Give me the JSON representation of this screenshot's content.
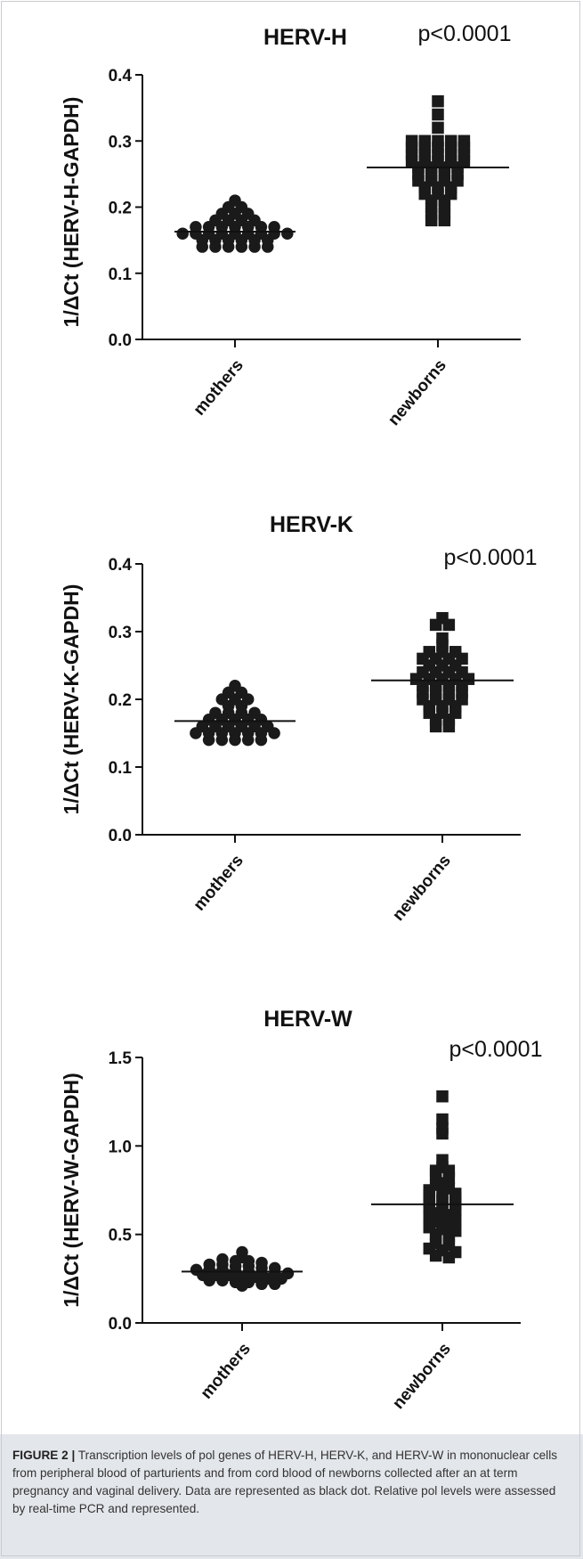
{
  "chart_data": [
    {
      "type": "scatter",
      "title": "HERV-H",
      "annotation": "p<0.0001",
      "ylabel": "1/ΔCt (HERV-H-GAPDH)",
      "ylim": [
        0,
        0.4
      ],
      "yticks": [
        "0.0",
        "0.1",
        "0.2",
        "0.3",
        "0.4"
      ],
      "categories": [
        "mothers",
        "newborns"
      ],
      "series": [
        {
          "category": "mothers",
          "marker": "circle",
          "mean": 0.163,
          "values": [
            0.21,
            0.2,
            0.2,
            0.19,
            0.19,
            0.19,
            0.18,
            0.18,
            0.18,
            0.18,
            0.17,
            0.17,
            0.17,
            0.17,
            0.17,
            0.17,
            0.17,
            0.16,
            0.16,
            0.16,
            0.16,
            0.16,
            0.16,
            0.16,
            0.16,
            0.16,
            0.15,
            0.15,
            0.15,
            0.15,
            0.15,
            0.15,
            0.14,
            0.14,
            0.14,
            0.14,
            0.14,
            0.14
          ]
        },
        {
          "category": "newborns",
          "marker": "square",
          "mean": 0.26,
          "values": [
            0.36,
            0.34,
            0.32,
            0.3,
            0.3,
            0.3,
            0.3,
            0.3,
            0.29,
            0.29,
            0.29,
            0.29,
            0.29,
            0.28,
            0.28,
            0.28,
            0.28,
            0.28,
            0.27,
            0.27,
            0.27,
            0.27,
            0.27,
            0.26,
            0.26,
            0.26,
            0.26,
            0.25,
            0.25,
            0.25,
            0.25,
            0.24,
            0.24,
            0.24,
            0.24,
            0.23,
            0.23,
            0.23,
            0.22,
            0.22,
            0.22,
            0.21,
            0.21,
            0.2,
            0.2,
            0.19,
            0.19,
            0.18,
            0.18
          ]
        }
      ]
    },
    {
      "type": "scatter",
      "title": "HERV-K",
      "annotation": "p<0.0001",
      "ylabel": "1/ΔCt (HERV-K-GAPDH)",
      "ylim": [
        0,
        0.4
      ],
      "yticks": [
        "0.0",
        "0.1",
        "0.2",
        "0.3",
        "0.4"
      ],
      "categories": [
        "mothers",
        "newborns"
      ],
      "series": [
        {
          "category": "mothers",
          "marker": "circle",
          "mean": 0.168,
          "values": [
            0.22,
            0.21,
            0.21,
            0.2,
            0.2,
            0.2,
            0.19,
            0.19,
            0.18,
            0.18,
            0.18,
            0.18,
            0.17,
            0.17,
            0.17,
            0.17,
            0.17,
            0.16,
            0.16,
            0.16,
            0.16,
            0.16,
            0.16,
            0.15,
            0.15,
            0.15,
            0.15,
            0.15,
            0.15,
            0.15,
            0.14,
            0.14,
            0.14,
            0.14,
            0.14
          ]
        },
        {
          "category": "newborns",
          "marker": "square",
          "mean": 0.228,
          "values": [
            0.32,
            0.31,
            0.31,
            0.29,
            0.28,
            0.27,
            0.27,
            0.27,
            0.26,
            0.26,
            0.26,
            0.26,
            0.25,
            0.25,
            0.25,
            0.24,
            0.24,
            0.24,
            0.24,
            0.23,
            0.23,
            0.23,
            0.23,
            0.23,
            0.22,
            0.22,
            0.22,
            0.22,
            0.21,
            0.21,
            0.21,
            0.21,
            0.2,
            0.2,
            0.2,
            0.2,
            0.19,
            0.19,
            0.19,
            0.18,
            0.18,
            0.18,
            0.17,
            0.17,
            0.16,
            0.16
          ]
        }
      ]
    },
    {
      "type": "scatter",
      "title": "HERV-W",
      "annotation": "p<0.0001",
      "ylabel": "1/ΔCt (HERV-W-GAPDH)",
      "ylim": [
        0,
        1.5
      ],
      "yticks": [
        "0.0",
        "0.5",
        "1.0",
        "1.5"
      ],
      "categories": [
        "mothers",
        "newborns"
      ],
      "series": [
        {
          "category": "mothers",
          "marker": "circle",
          "mean": 0.29,
          "values": [
            0.4,
            0.37,
            0.36,
            0.35,
            0.35,
            0.34,
            0.33,
            0.33,
            0.32,
            0.32,
            0.31,
            0.31,
            0.3,
            0.3,
            0.3,
            0.29,
            0.29,
            0.28,
            0.28,
            0.28,
            0.27,
            0.27,
            0.27,
            0.26,
            0.26,
            0.25,
            0.25,
            0.24,
            0.24,
            0.23,
            0.23,
            0.22,
            0.22,
            0.21
          ]
        },
        {
          "category": "newborns",
          "marker": "square",
          "mean": 0.67,
          "values": [
            1.28,
            1.15,
            1.1,
            1.07,
            0.92,
            0.88,
            0.86,
            0.86,
            0.84,
            0.82,
            0.79,
            0.78,
            0.76,
            0.75,
            0.74,
            0.73,
            0.72,
            0.7,
            0.7,
            0.69,
            0.68,
            0.67,
            0.66,
            0.65,
            0.64,
            0.62,
            0.61,
            0.6,
            0.59,
            0.58,
            0.57,
            0.55,
            0.54,
            0.53,
            0.52,
            0.5,
            0.49,
            0.47,
            0.46,
            0.45,
            0.44,
            0.42,
            0.41,
            0.4,
            0.38,
            0.37
          ]
        }
      ]
    }
  ],
  "caption": {
    "label": "FIGURE 2 |",
    "text": "Transcription levels of pol genes of HERV-H, HERV-K, and HERV-W in mononuclear cells from peripheral blood of parturients and from cord blood of newborns collected after an at term pregnancy and vaginal delivery. Data are represented as black dot. Relative pol levels were assessed by real-time PCR and represented."
  }
}
